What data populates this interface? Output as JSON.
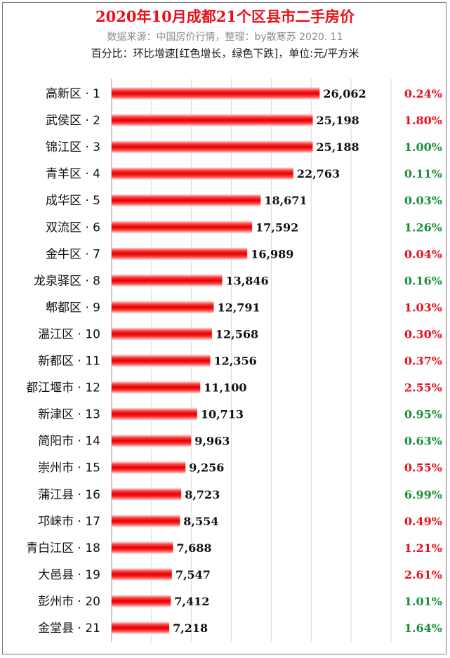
{
  "header": {
    "title": "2020年10月成都21个区县市二手房价",
    "subtitle": "数据来源：中国房价行情，整理：by散寒苏  2020. 11",
    "note": "百分比：环比增速[红色增长，绿色下跌]，单位:元/平方米"
  },
  "colors": {
    "title": "#e8101a",
    "bar": "#ee1111",
    "increase": "#e8101a",
    "decrease": "#1a8f3a",
    "grid": "#d9d9d9"
  },
  "chart_data": {
    "type": "bar",
    "orientation": "horizontal",
    "grid": true,
    "categories": [
      "高新区 · 1",
      "武侯区 · 2",
      "锦江区 · 3",
      "青羊区 · 4",
      "成华区 · 5",
      "双流区 · 6",
      "金牛区 · 7",
      "龙泉驿区 · 8",
      "郫都区 · 9",
      "温江区 · 10",
      "新都区 · 11",
      "都江堰市 · 12",
      "新津区 · 13",
      "简阳市 · 14",
      "崇州市 · 15",
      "蒲江县 · 16",
      "邛崃市 · 17",
      "青白江区 · 18",
      "大邑县 · 19",
      "彭州市 · 20",
      "金堂县 · 21"
    ],
    "values": [
      26062,
      25198,
      25188,
      22763,
      18671,
      17592,
      16989,
      13846,
      12791,
      12568,
      12356,
      11100,
      10713,
      9963,
      9256,
      8723,
      8554,
      7688,
      7547,
      7412,
      7218
    ],
    "value_labels": [
      "26,062",
      "25,198",
      "25,188",
      "22,763",
      "18,671",
      "17,592",
      "16,989",
      "13,846",
      "12,791",
      "12,568",
      "12,356",
      "11,100",
      "10,713",
      "9,963",
      "9,256",
      "8,723",
      "8,554",
      "7,688",
      "7,547",
      "7,412",
      "7,218"
    ],
    "change_labels": [
      "0.24%",
      "1.80%",
      "1.00%",
      "0.11%",
      "0.03%",
      "1.26%",
      "0.04%",
      "0.16%",
      "1.03%",
      "0.30%",
      "0.37%",
      "2.55%",
      "0.95%",
      "0.63%",
      "0.55%",
      "6.99%",
      "0.49%",
      "1.21%",
      "2.61%",
      "1.01%",
      "1.64%"
    ],
    "change_direction": [
      "up",
      "up",
      "down",
      "down",
      "down",
      "down",
      "up",
      "down",
      "up",
      "up",
      "up",
      "up",
      "down",
      "down",
      "up",
      "down",
      "up",
      "up",
      "up",
      "down",
      "down"
    ],
    "xlim": [
      0,
      35000
    ]
  }
}
